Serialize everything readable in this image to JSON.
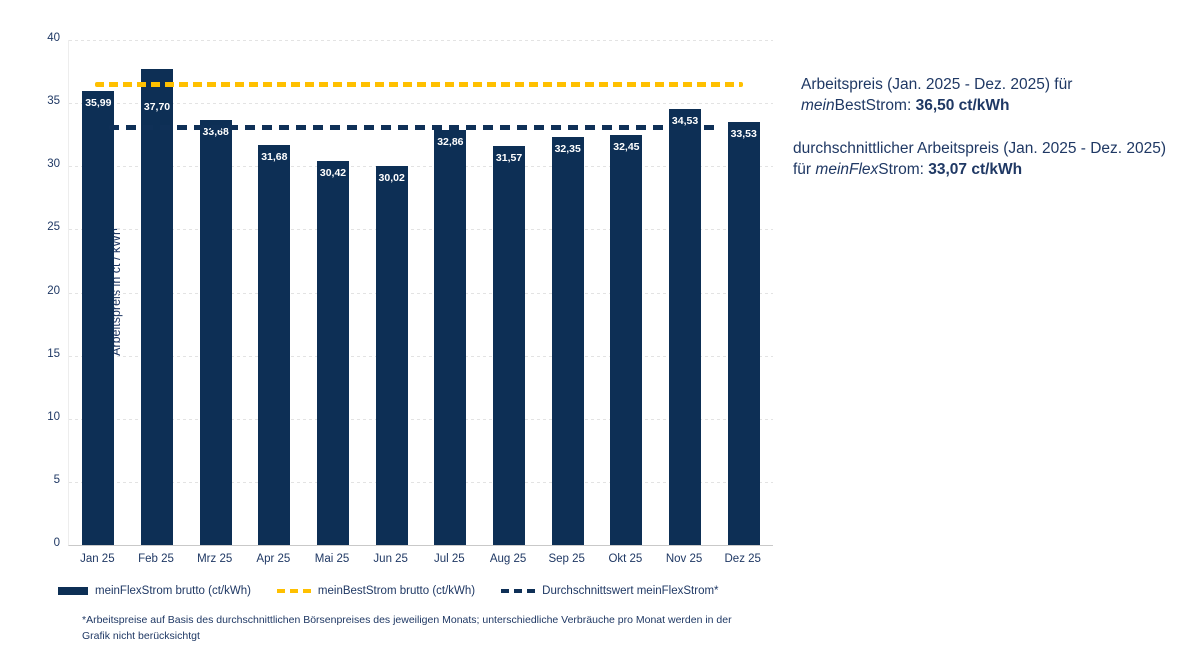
{
  "chart_data": {
    "type": "bar",
    "title": "",
    "xlabel": "",
    "ylabel": "Arbeitspreis in ct / kWh",
    "ylim": [
      0,
      40
    ],
    "ytick_step": 5,
    "grid": true,
    "legend_position": "bottom",
    "categories": [
      "Jan 25",
      "Feb 25",
      "Mrz 25",
      "Apr 25",
      "Mai 25",
      "Jun 25",
      "Jul 25",
      "Aug 25",
      "Sep 25",
      "Okt 25",
      "Nov 25",
      "Dez 25"
    ],
    "series": [
      {
        "name": "meinFlexStrom brutto (ct/kWh)",
        "type": "bar",
        "values": [
          35.99,
          37.7,
          33.68,
          31.68,
          30.42,
          30.02,
          32.86,
          31.57,
          32.35,
          32.45,
          34.53,
          33.53
        ],
        "labels": [
          "35,99",
          "37,70",
          "33,68",
          "31,68",
          "30,42",
          "30,02",
          "32,86",
          "31,57",
          "32,35",
          "32,45",
          "34,53",
          "33,53"
        ]
      }
    ],
    "reference_lines": [
      {
        "name": "meinBestStrom brutto (ct/kWh)",
        "value": 36.5,
        "color": "#ffc000",
        "style": "dashed"
      },
      {
        "name": "Durchschnittswert meinFlexStrom*",
        "value": 33.07,
        "color": "#0f3057",
        "style": "dashed"
      }
    ]
  },
  "legend": {
    "items": [
      {
        "label": "meinFlexStrom brutto (ct/kWh)",
        "swatch": "solid-navy"
      },
      {
        "label": "meinBestStrom brutto (ct/kWh)",
        "swatch": "dashed-yellow"
      },
      {
        "label": "Durchschnittswert meinFlexStrom*",
        "swatch": "dashed-navy"
      }
    ]
  },
  "annotations": {
    "best": {
      "line1": "Arbeitspreis (Jan. 2025 - Dez. 2025) für",
      "brand_italic": "mein",
      "brand_rest": "BestStrom: ",
      "value_bold": "36,50 ct/kWh"
    },
    "flex": {
      "line1": "durchschnittlicher Arbeitspreis (Jan. 2025 - Dez. 2025)",
      "line2_prefix": "für ",
      "brand_italic": "meinFlex",
      "brand_rest": "Strom: ",
      "value_bold": "33,07 ct/kWh"
    }
  },
  "footnote": "*Arbeitspreise auf Basis des durchschnittlichen Börsenpreises des jeweiligen Monats; unterschiedliche Verbräuche pro Monat werden in der\nGrafik nicht berücksichtgt",
  "colors": {
    "bar": "#0d2f55",
    "accent_yellow": "#ffc000",
    "text_navy": "#1f3864",
    "grid": "#e3e3e3",
    "axis": "#c9c9c9"
  }
}
